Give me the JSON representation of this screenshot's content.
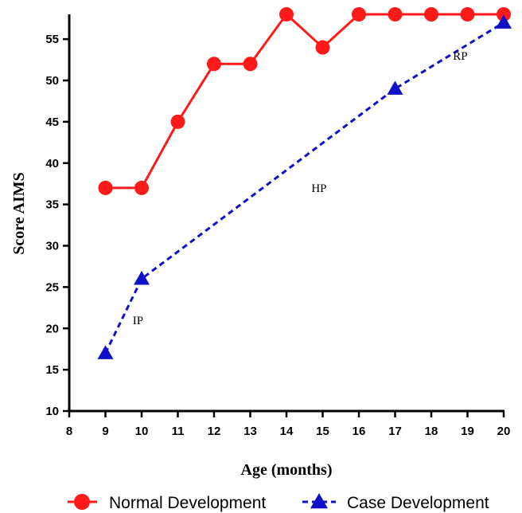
{
  "chart_data": {
    "type": "line",
    "xlabel": "Age (months)",
    "ylabel": "Score AIMS",
    "xlim": [
      8,
      20
    ],
    "ylim": [
      10,
      58
    ],
    "x_ticks": [
      "8",
      "9",
      "10",
      "11",
      "12",
      "13",
      "14",
      "15",
      "16",
      "17",
      "18",
      "19",
      "20"
    ],
    "y_ticks": [
      "10",
      "15",
      "20",
      "25",
      "30",
      "35",
      "40",
      "45",
      "50",
      "55"
    ],
    "grid": false,
    "legend_position": "bottom",
    "series": [
      {
        "name": "Normal Development",
        "color": "#ff1a1a",
        "marker": "circle",
        "line_style": "solid",
        "x": [
          9,
          10,
          11,
          12,
          13,
          14,
          15,
          16,
          17,
          18,
          19,
          20
        ],
        "y": [
          37,
          37,
          45,
          52,
          52,
          58,
          54,
          58,
          58,
          58,
          58,
          58
        ]
      },
      {
        "name": "Case Development",
        "color": "#1010c8",
        "marker": "triangle",
        "line_style": "dashed",
        "x": [
          9,
          10,
          17,
          20
        ],
        "y": [
          17,
          26,
          49,
          57
        ]
      }
    ],
    "annotations": [
      {
        "text": "IP",
        "x": 9.9,
        "y": 20.5
      },
      {
        "text": "HP",
        "x": 14.9,
        "y": 36.5
      },
      {
        "text": "RP",
        "x": 18.8,
        "y": 52.5
      }
    ]
  }
}
